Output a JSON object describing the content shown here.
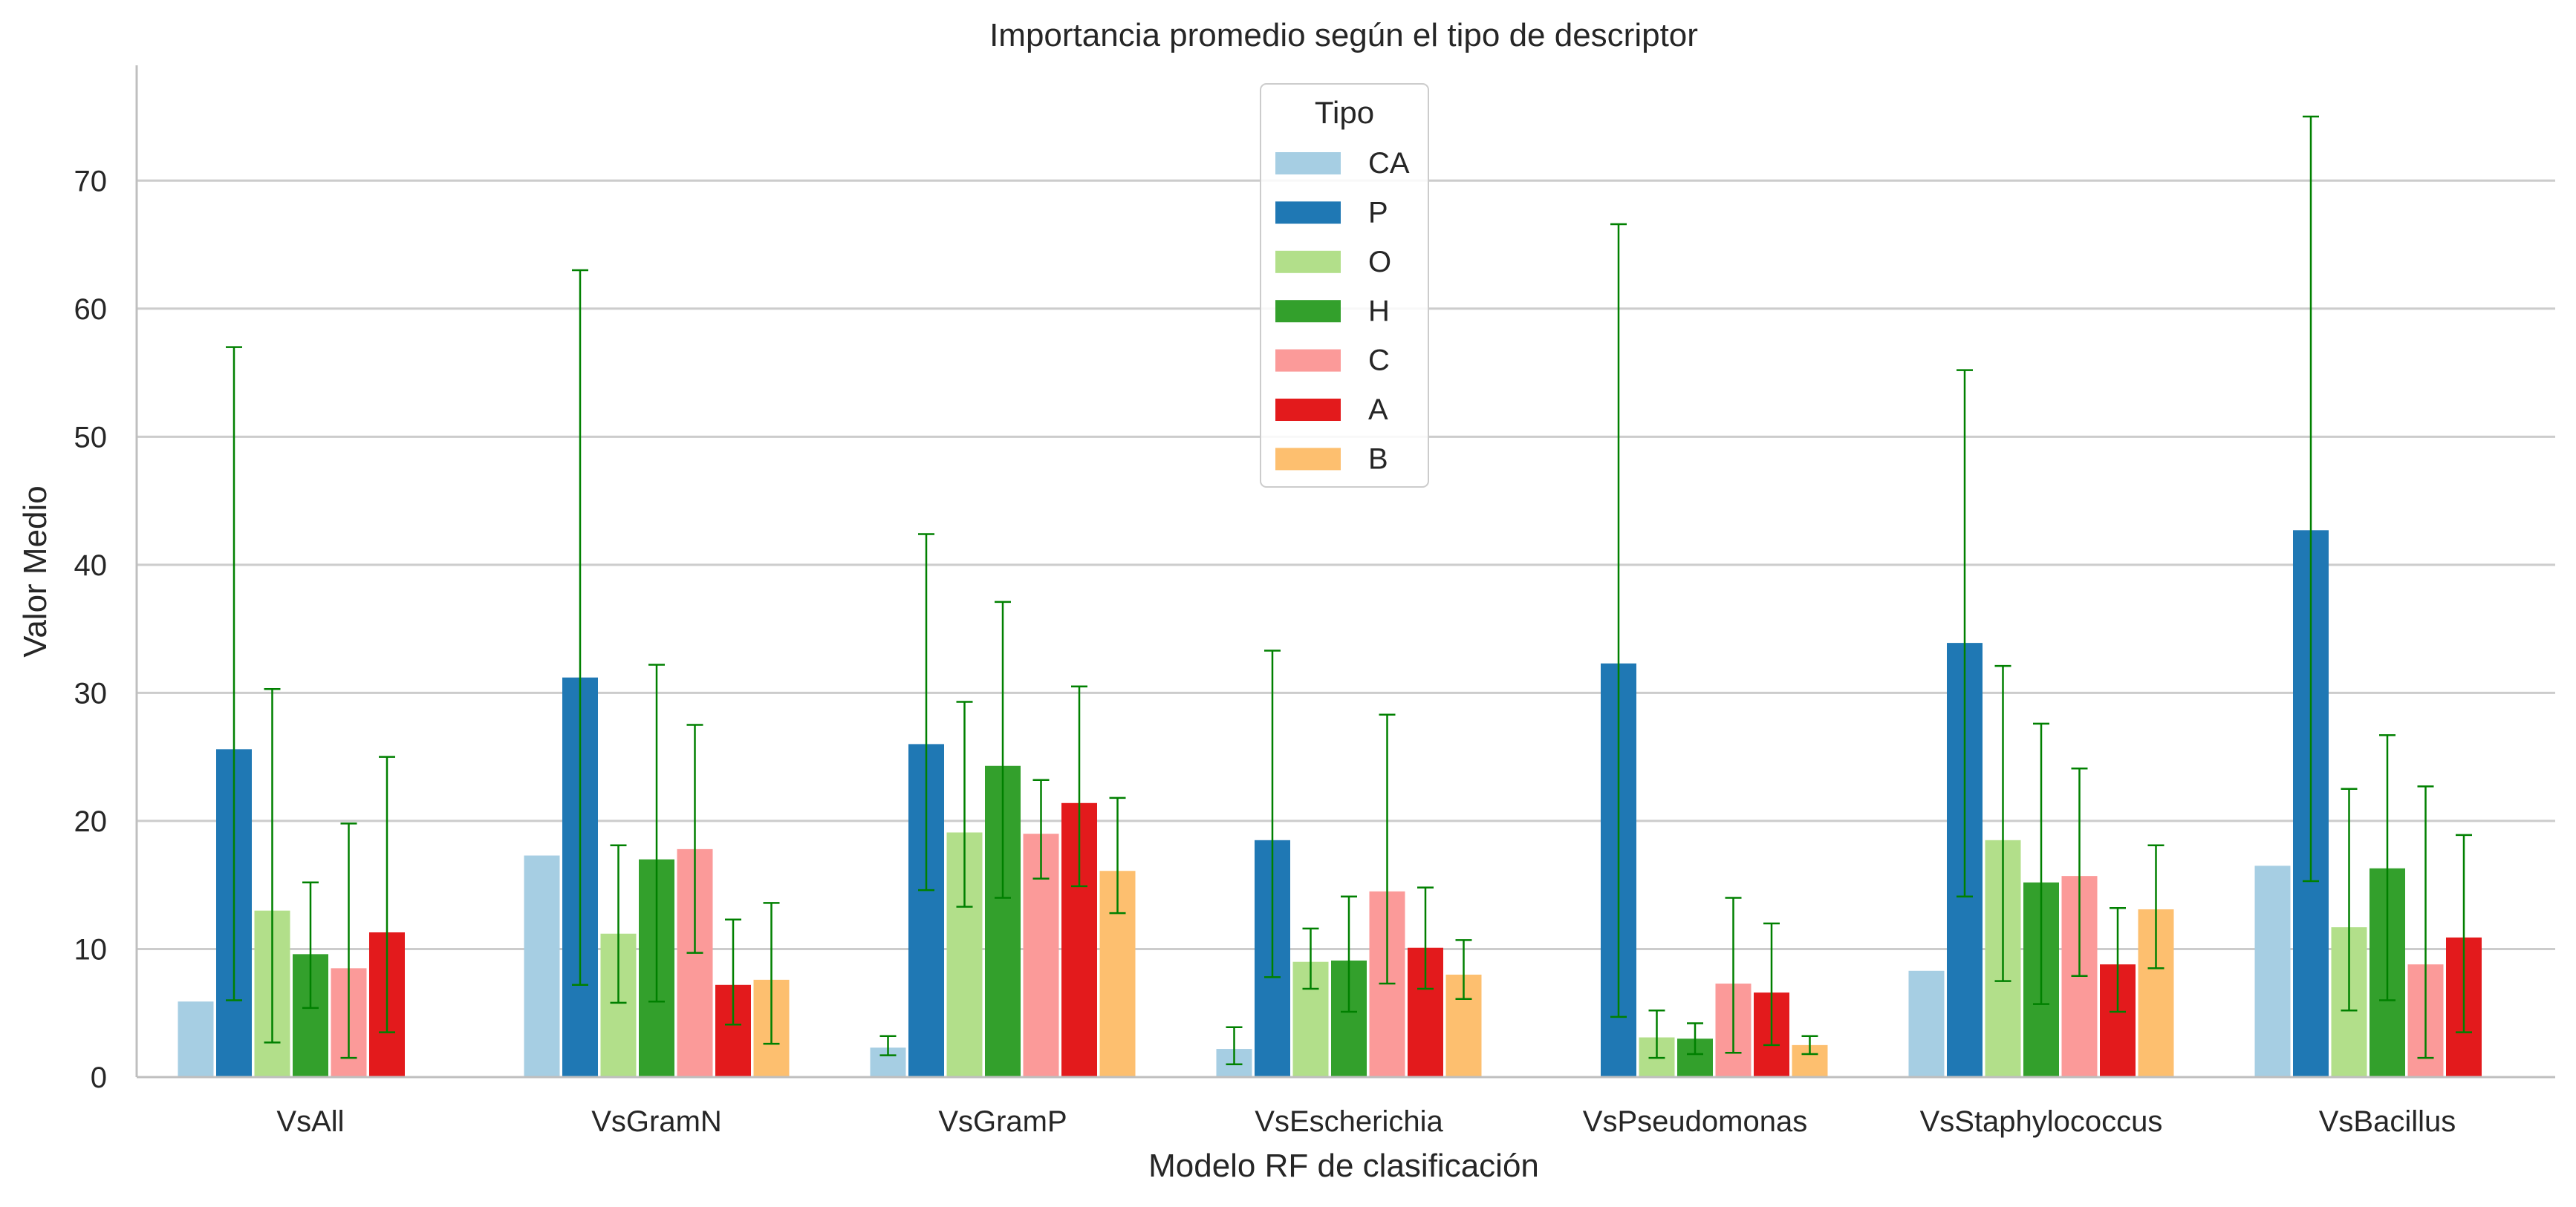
{
  "chart_data": {
    "type": "bar",
    "title": "Importancia promedio según el tipo de descriptor",
    "xlabel": "Modelo RF de clasificación",
    "ylabel": "Valor Medio",
    "ylim": [
      0,
      79
    ],
    "yticks": [
      0,
      10,
      20,
      30,
      40,
      50,
      60,
      70
    ],
    "grid": "horizontal",
    "legend": {
      "title": "Tipo",
      "placement": "top-center"
    },
    "categories": [
      "VsAll",
      "VsGramN",
      "VsGramP",
      "VsEscherichia",
      "VsPseudomonas",
      "VsStaphylococcus",
      "VsBacillus"
    ],
    "error_bar_color": "#008000",
    "series": [
      {
        "name": "CA",
        "color": "#a6cee3",
        "values": [
          5.9,
          17.3,
          2.3,
          2.2,
          0,
          8.3,
          16.5
        ],
        "err_low": [
          null,
          null,
          1.7,
          1.0,
          null,
          null,
          null
        ],
        "err_high": [
          null,
          null,
          3.2,
          3.9,
          null,
          null,
          null
        ]
      },
      {
        "name": "P",
        "color": "#1f78b4",
        "values": [
          25.6,
          31.2,
          26.0,
          18.5,
          32.3,
          33.9,
          42.7
        ],
        "err_low": [
          6.0,
          7.2,
          14.6,
          7.8,
          4.7,
          14.1,
          15.3
        ],
        "err_high": [
          57.0,
          63.0,
          42.4,
          33.3,
          66.6,
          55.2,
          75.0
        ]
      },
      {
        "name": "O",
        "color": "#b2df8a",
        "values": [
          13.0,
          11.2,
          19.1,
          9.0,
          3.1,
          18.5,
          11.7
        ],
        "err_low": [
          2.7,
          5.8,
          13.3,
          6.9,
          1.5,
          7.5,
          5.2
        ],
        "err_high": [
          30.3,
          18.1,
          29.3,
          11.6,
          5.2,
          32.1,
          22.5
        ]
      },
      {
        "name": "H",
        "color": "#33a02c",
        "values": [
          9.6,
          17.0,
          24.3,
          9.1,
          3.0,
          15.2,
          16.3
        ],
        "err_low": [
          5.4,
          5.9,
          14.0,
          5.1,
          1.8,
          5.7,
          6.0
        ],
        "err_high": [
          15.2,
          32.2,
          37.1,
          14.1,
          4.2,
          27.6,
          26.7
        ]
      },
      {
        "name": "C",
        "color": "#fb9a99",
        "values": [
          8.5,
          17.8,
          19.0,
          14.5,
          7.3,
          15.7,
          8.8
        ],
        "err_low": [
          1.5,
          9.7,
          15.5,
          7.3,
          1.9,
          7.9,
          1.5
        ],
        "err_high": [
          19.8,
          27.5,
          23.2,
          28.3,
          14.0,
          24.1,
          22.7
        ]
      },
      {
        "name": "A",
        "color": "#e31a1c",
        "values": [
          11.3,
          7.2,
          21.4,
          10.1,
          6.6,
          8.8,
          10.9
        ],
        "err_low": [
          3.5,
          4.1,
          14.9,
          6.9,
          2.5,
          5.1,
          3.5
        ],
        "err_high": [
          25.0,
          12.3,
          30.5,
          14.8,
          12.0,
          13.2,
          18.9
        ]
      },
      {
        "name": "B",
        "color": "#fdbf6f",
        "values": [
          0,
          7.6,
          16.1,
          8.0,
          2.5,
          13.1,
          0
        ],
        "err_low": [
          null,
          2.6,
          12.8,
          6.1,
          1.8,
          8.5,
          null
        ],
        "err_high": [
          null,
          13.6,
          21.8,
          10.7,
          3.2,
          18.1,
          null
        ]
      }
    ]
  }
}
